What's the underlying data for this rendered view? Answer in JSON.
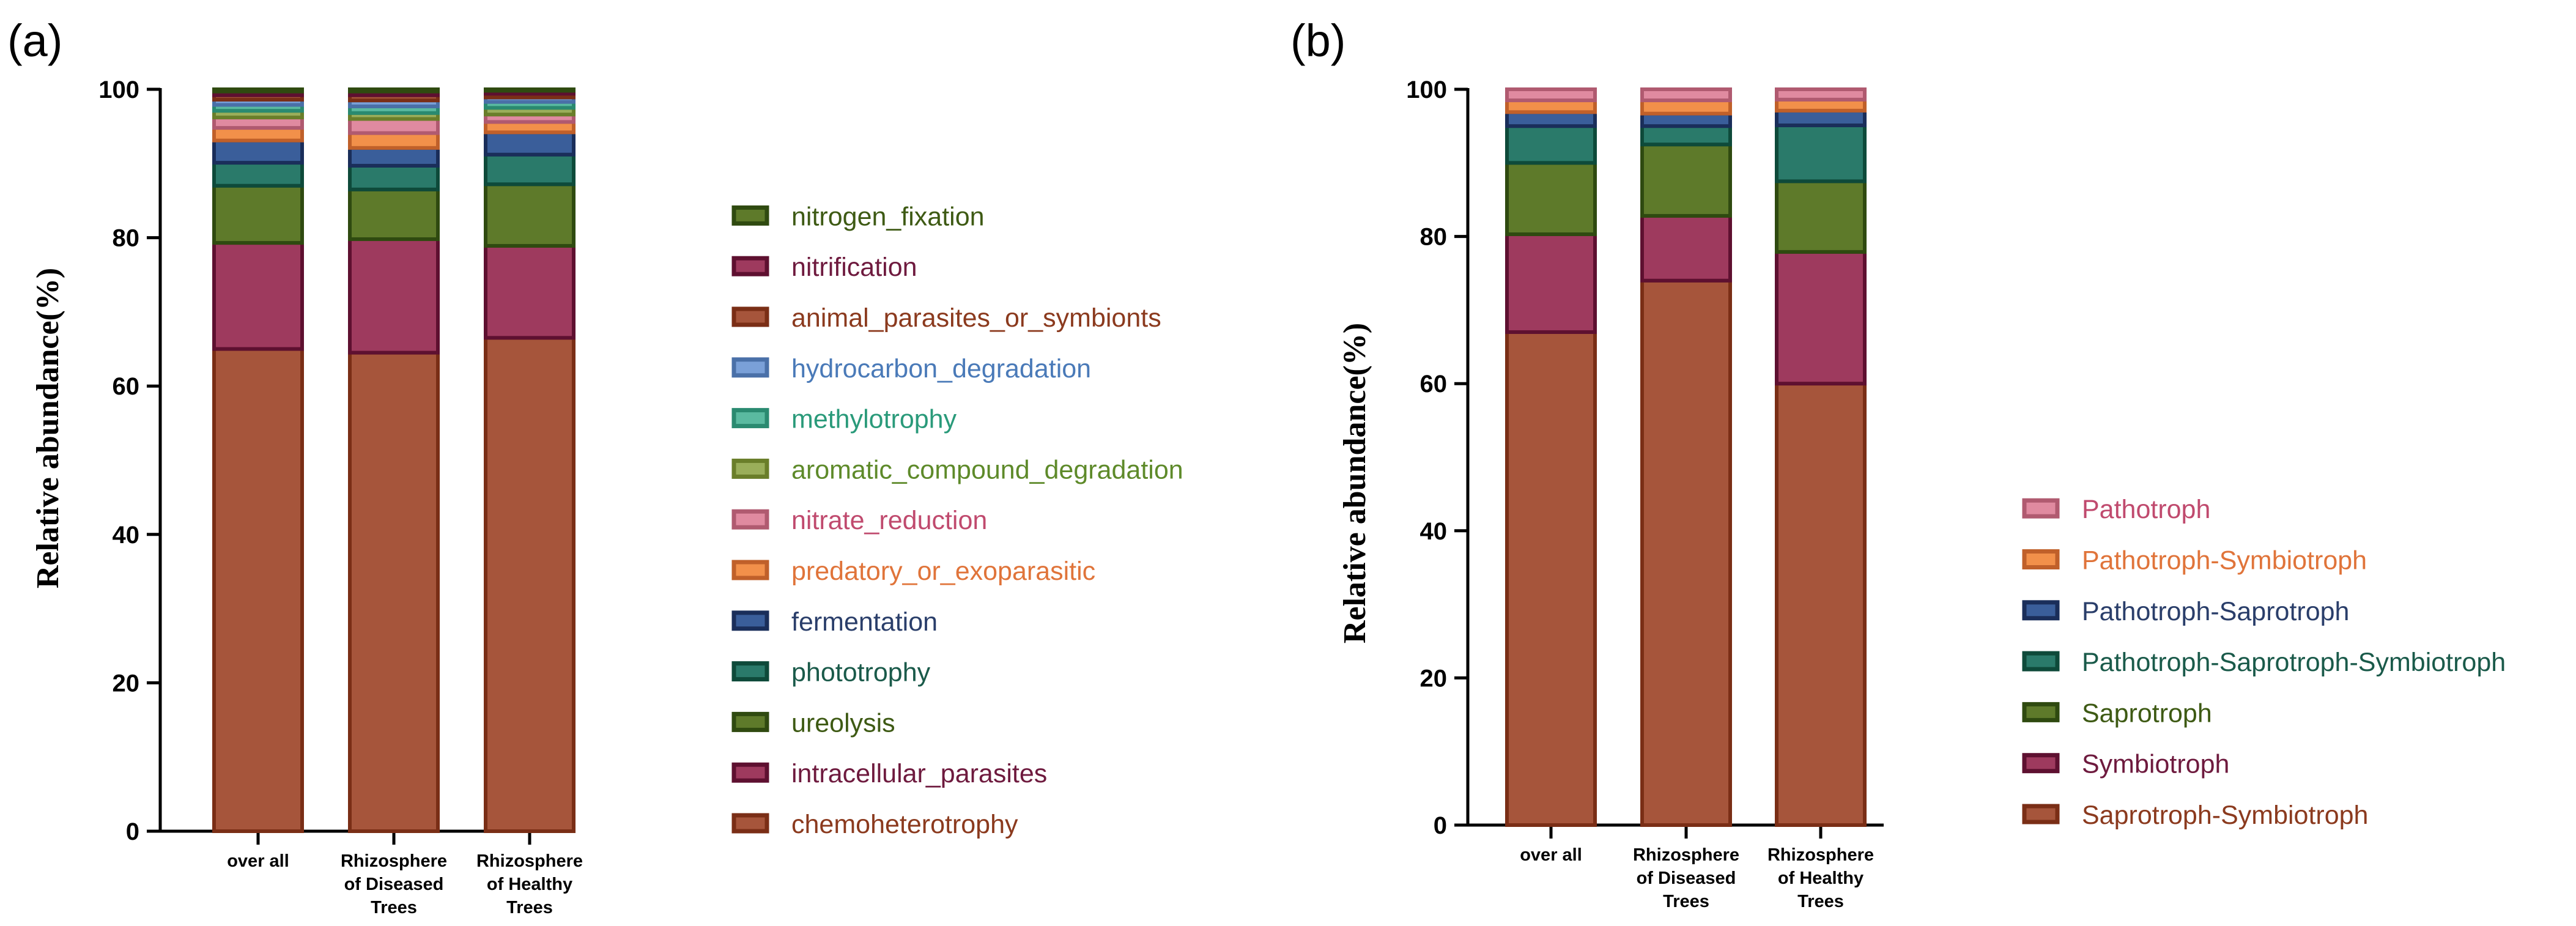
{
  "chart_data": [
    {
      "panel": "(a)",
      "type": "bar",
      "stacked": true,
      "title": "",
      "xlabel": "",
      "ylabel": "Relative abundance(%)",
      "ylim": [
        0,
        100
      ],
      "yticks": [
        "0",
        "20",
        "40",
        "60",
        "80",
        "100"
      ],
      "categories": [
        [
          "over all"
        ],
        [
          "Rhizosphere",
          "of Diseased",
          "Trees"
        ],
        [
          "Rhizosphere",
          "of Healthy",
          "Trees"
        ]
      ],
      "series": [
        {
          "name": "chemoheterotrophy",
          "color": "#A6553B",
          "edge": "#7A2E16",
          "text_color": "#8B3A1E",
          "values": [
            65.0,
            64.5,
            66.5
          ]
        },
        {
          "name": "intracellular_parasites",
          "color": "#9E3A5E",
          "edge": "#5E1030",
          "text_color": "#6E1A3E",
          "values": [
            14.3,
            15.3,
            12.4
          ]
        },
        {
          "name": "ureolysis",
          "color": "#5E7A2A",
          "edge": "#2F4A10",
          "text_color": "#3E5A14",
          "values": [
            7.7,
            6.7,
            8.3
          ]
        },
        {
          "name": "phototrophy",
          "color": "#2A7A6A",
          "edge": "#0E4A3A",
          "text_color": "#1A5A4A",
          "values": [
            3.1,
            3.2,
            4.0
          ]
        },
        {
          "name": "fermentation",
          "color": "#3A5E9A",
          "edge": "#1A2E5A",
          "text_color": "#2A3E6A",
          "values": [
            3.0,
            2.4,
            3.0
          ]
        },
        {
          "name": "predatory_or_exoparasitic",
          "color": "#F2904A",
          "edge": "#C0602A",
          "text_color": "#E0743A",
          "values": [
            1.7,
            2.0,
            1.4
          ]
        },
        {
          "name": "nitrate_reduction",
          "color": "#E08AA0",
          "edge": "#B05A70",
          "text_color": "#C04A6E",
          "values": [
            1.4,
            1.9,
            1.0
          ]
        },
        {
          "name": "aromatic_compound_degradation",
          "color": "#9AAE5A",
          "edge": "#6A7E2A",
          "text_color": "#5E8A2A",
          "values": [
            0.9,
            0.8,
            0.9
          ]
        },
        {
          "name": "methylotrophy",
          "color": "#5ABAA0",
          "edge": "#2A8A70",
          "text_color": "#2A9A7A",
          "values": [
            0.8,
            0.9,
            0.8
          ]
        },
        {
          "name": "hydrocarbon_degradation",
          "color": "#7AA0D8",
          "edge": "#4A70A8",
          "text_color": "#4A7AB8",
          "values": [
            0.7,
            0.8,
            0.6
          ]
        },
        {
          "name": "animal_parasites_or_symbionts",
          "color": "#A6553B",
          "edge": "#7A2E16",
          "text_color": "#8B3A1E",
          "values": [
            0.6,
            0.7,
            0.5
          ]
        },
        {
          "name": "nitrification",
          "color": "#9E3A5E",
          "edge": "#5E1030",
          "text_color": "#6E1A3E",
          "values": [
            0.5,
            0.5,
            0.4
          ]
        },
        {
          "name": "nitrogen_fixation",
          "color": "#5E7A2A",
          "edge": "#2F4A10",
          "text_color": "#3E5A14",
          "values": [
            0.3,
            0.3,
            0.2
          ]
        }
      ]
    },
    {
      "panel": "(b)",
      "type": "bar",
      "stacked": true,
      "title": "",
      "xlabel": "",
      "ylabel": "Relative abundance(%)",
      "ylim": [
        0,
        100
      ],
      "yticks": [
        "0",
        "20",
        "40",
        "60",
        "80",
        "100"
      ],
      "categories": [
        [
          "over all"
        ],
        [
          "Rhizosphere",
          "of Diseased",
          "Trees"
        ],
        [
          "Rhizosphere",
          "of Healthy",
          "Trees"
        ]
      ],
      "series": [
        {
          "name": "Saprotroph-Symbiotroph",
          "color": "#A6553B",
          "edge": "#7A2E16",
          "text_color": "#8B3A1E",
          "values": [
            67.0,
            74.0,
            60.0
          ]
        },
        {
          "name": "Symbiotroph",
          "color": "#9E3A5E",
          "edge": "#5E1030",
          "text_color": "#6E1A3E",
          "values": [
            13.3,
            8.8,
            17.9
          ]
        },
        {
          "name": "Saprotroph",
          "color": "#5E7A2A",
          "edge": "#2F4A10",
          "text_color": "#3E5A14",
          "values": [
            9.7,
            9.7,
            9.6
          ]
        },
        {
          "name": "Pathotroph-Saprotroph-Symbiotroph",
          "color": "#2A7A6A",
          "edge": "#0E4A3A",
          "text_color": "#1A5A4A",
          "values": [
            5.0,
            2.5,
            7.6
          ]
        },
        {
          "name": "Pathotroph-Saprotroph",
          "color": "#3A5E9A",
          "edge": "#1A2E5A",
          "text_color": "#2A3E6A",
          "values": [
            1.9,
            1.7,
            2.0
          ]
        },
        {
          "name": "Pathotroph-Symbiotroph",
          "color": "#F2904A",
          "edge": "#C0602A",
          "text_color": "#E0743A",
          "values": [
            1.6,
            1.8,
            1.5
          ]
        },
        {
          "name": "Pathotroph",
          "color": "#E08AA0",
          "edge": "#B05A70",
          "text_color": "#C04A6E",
          "values": [
            1.5,
            1.5,
            1.4
          ]
        }
      ]
    }
  ]
}
